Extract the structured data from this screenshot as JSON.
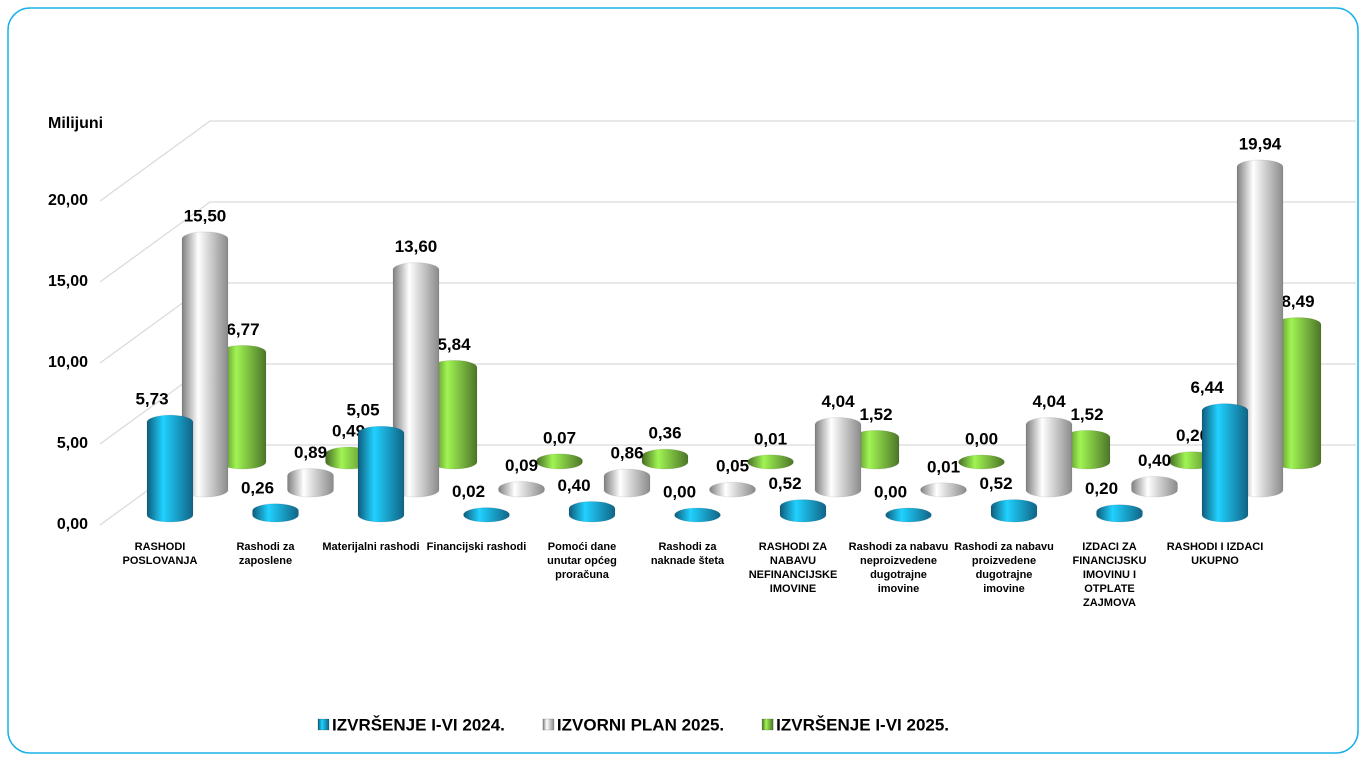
{
  "chart_data": {
    "type": "bar3d",
    "y_label": "Milijuni",
    "categories": [
      "RASHODI POSLOVANJA",
      "Rashodi za zaposlene",
      "Materijalni rashodi",
      "Financijski rashodi",
      "Pomoći dane unutar općeg proračuna",
      "Rashodi za naknade šteta",
      "RASHODI ZA NABAVU NEFINANCIJSKE IMOVINE",
      "Rashodi za nabavu neproizvedene dugotrajne imovine",
      "Rashodi za nabavu proizvedene dugotrajne imovine",
      "IZDACI ZA FINANCIJSKU IMOVINU I OTPLATE ZAJMOVA",
      "RASHODI I IZDACI UKUPNO"
    ],
    "series": [
      {
        "name": "IZVRŠENJE I-VI 2024.",
        "color": "#1aa7e0",
        "values": [
          5.73,
          0.26,
          5.05,
          0.02,
          0.4,
          0.0,
          0.52,
          0.0,
          0.52,
          0.2,
          6.44
        ],
        "value_labels": [
          "5,73",
          "0,26",
          "5,05",
          "0,02",
          "0,40",
          "0,00",
          "0,52",
          "0,00",
          "0,52",
          "0,20",
          "6,44"
        ]
      },
      {
        "name": "IZVORNI PLAN 2025.",
        "color": "#e6e6e6",
        "values": [
          15.5,
          0.89,
          13.6,
          0.09,
          0.86,
          0.05,
          4.04,
          0.01,
          4.04,
          0.4,
          19.94
        ],
        "value_labels": [
          "15,50",
          "0,89",
          "13,60",
          "0,09",
          "0,86",
          "0,05",
          "4,04",
          "0,01",
          "4,04",
          "0,40",
          "19,94"
        ]
      },
      {
        "name": "IZVRŠENJE I-VI 2025.",
        "color": "#80c342",
        "values": [
          6.77,
          0.49,
          5.84,
          0.07,
          0.36,
          0.01,
          1.52,
          0.0,
          1.52,
          0.2,
          8.49
        ],
        "value_labels": [
          "6,77",
          "0,49",
          "5,84",
          "0,07",
          "0,36",
          "0,01",
          "1,52",
          "0,00",
          "1,52",
          "0,20",
          "8,49"
        ]
      }
    ],
    "ylim": [
      0,
      20
    ],
    "yticks": [
      {
        "value": 0,
        "label": "0,00"
      },
      {
        "value": 5,
        "label": "5,00"
      },
      {
        "value": 10,
        "label": "10,00"
      },
      {
        "value": 15,
        "label": "15,00"
      },
      {
        "value": 20,
        "label": "20,00"
      }
    ],
    "grid": true
  }
}
